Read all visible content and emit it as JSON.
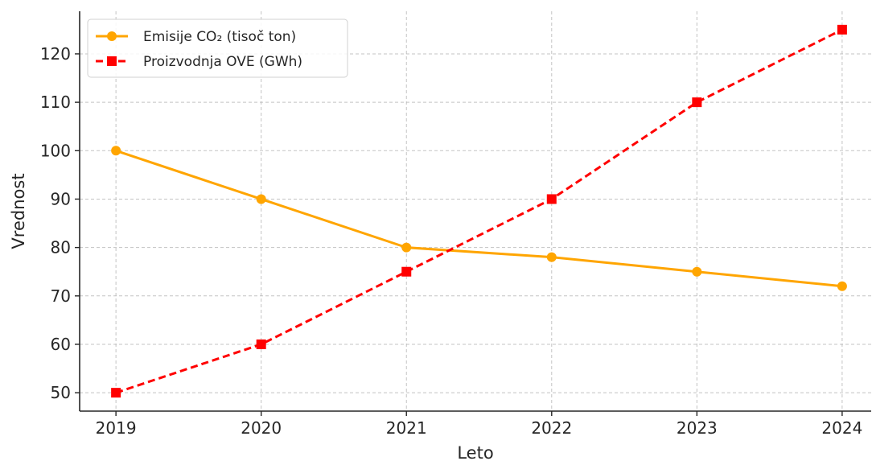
{
  "chart_data": {
    "type": "line",
    "x": [
      2019,
      2020,
      2021,
      2022,
      2023,
      2024
    ],
    "series": [
      {
        "name": "Emisije CO₂ (tisoč ton)",
        "values": [
          100,
          90,
          80,
          78,
          75,
          72
        ],
        "color": "#FFA500",
        "line_style": "solid",
        "marker": "circle"
      },
      {
        "name": "Proizvodnja OVE (GWh)",
        "values": [
          50,
          60,
          75,
          90,
          110,
          125
        ],
        "color": "#FF0000",
        "line_style": "dashed",
        "marker": "square"
      }
    ],
    "xlabel": "Leto",
    "ylabel": "Vrednost",
    "xticks": [
      "2019",
      "2020",
      "2021",
      "2022",
      "2023",
      "2024"
    ],
    "yticks": [
      50,
      60,
      70,
      80,
      90,
      100,
      110,
      120
    ],
    "xlim": [
      2018.75,
      2024.2
    ],
    "ylim": [
      46.2,
      128.8
    ],
    "grid": true,
    "legend_position": "upper-left"
  }
}
